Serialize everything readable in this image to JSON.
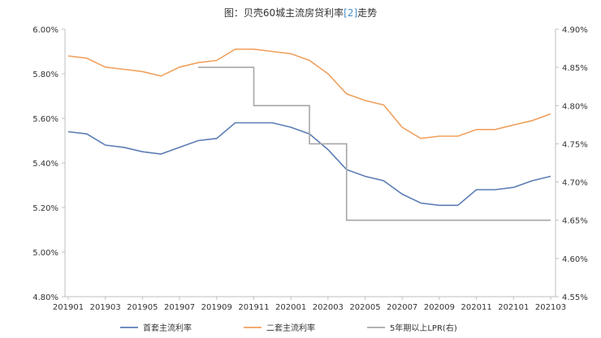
{
  "chart_data": {
    "type": "line",
    "title_prefix": "图：贝壳60城主流房贷利率",
    "title_ref": "[2]",
    "title_suffix": "走势",
    "x": [
      "201901",
      "201902",
      "201903",
      "201904",
      "201905",
      "201906",
      "201907",
      "201908",
      "201909",
      "201910",
      "201911",
      "201912",
      "202001",
      "202002",
      "202003",
      "202004",
      "202005",
      "202006",
      "202007",
      "202008",
      "202009",
      "202010",
      "202011",
      "202012",
      "202101",
      "202102",
      "202103"
    ],
    "xticks": [
      "201901",
      "201903",
      "201905",
      "201907",
      "201909",
      "201911",
      "202001",
      "202003",
      "202005",
      "202007",
      "202009",
      "202011",
      "202101",
      "202103"
    ],
    "y_left": {
      "min": 4.8,
      "max": 6.0,
      "step": 0.2,
      "ticks": [
        "6.00%",
        "5.80%",
        "5.60%",
        "5.40%",
        "5.20%",
        "5.00%",
        "4.80%"
      ]
    },
    "y_right": {
      "min": 4.55,
      "max": 4.9,
      "step": 0.05,
      "ticks": [
        "4.90%",
        "4.85%",
        "4.80%",
        "4.75%",
        "4.70%",
        "4.65%",
        "4.60%",
        "4.55%"
      ]
    },
    "series": [
      {
        "name": "首套主流利率",
        "axis": "left",
        "color": "#5b7db5",
        "values": [
          5.54,
          5.53,
          5.48,
          5.47,
          5.45,
          5.44,
          5.47,
          5.5,
          5.51,
          5.58,
          5.58,
          5.58,
          5.56,
          5.53,
          5.46,
          5.37,
          5.34,
          5.32,
          5.26,
          5.22,
          5.21,
          5.21,
          5.28,
          5.28,
          5.29,
          5.32,
          5.34
        ]
      },
      {
        "name": "二套主流利率",
        "axis": "left",
        "color": "#f0a15e",
        "values": [
          5.88,
          5.87,
          5.83,
          5.82,
          5.81,
          5.79,
          5.83,
          5.85,
          5.86,
          5.91,
          5.91,
          5.9,
          5.89,
          5.86,
          5.8,
          5.71,
          5.68,
          5.66,
          5.56,
          5.51,
          5.52,
          5.52,
          5.55,
          5.55,
          5.57,
          5.59,
          5.62
        ]
      },
      {
        "name": "5年期以上LPR(右)",
        "axis": "right",
        "color": "#a6a6a6",
        "step": true,
        "start_index": 7,
        "values": [
          null,
          null,
          null,
          null,
          null,
          null,
          null,
          4.85,
          4.85,
          4.85,
          4.8,
          4.8,
          4.8,
          4.75,
          4.75,
          4.65,
          4.65,
          4.65,
          4.65,
          4.65,
          4.65,
          4.65,
          4.65,
          4.65,
          4.65,
          4.65,
          4.65
        ]
      }
    ],
    "grid": false,
    "legend_position": "bottom"
  }
}
